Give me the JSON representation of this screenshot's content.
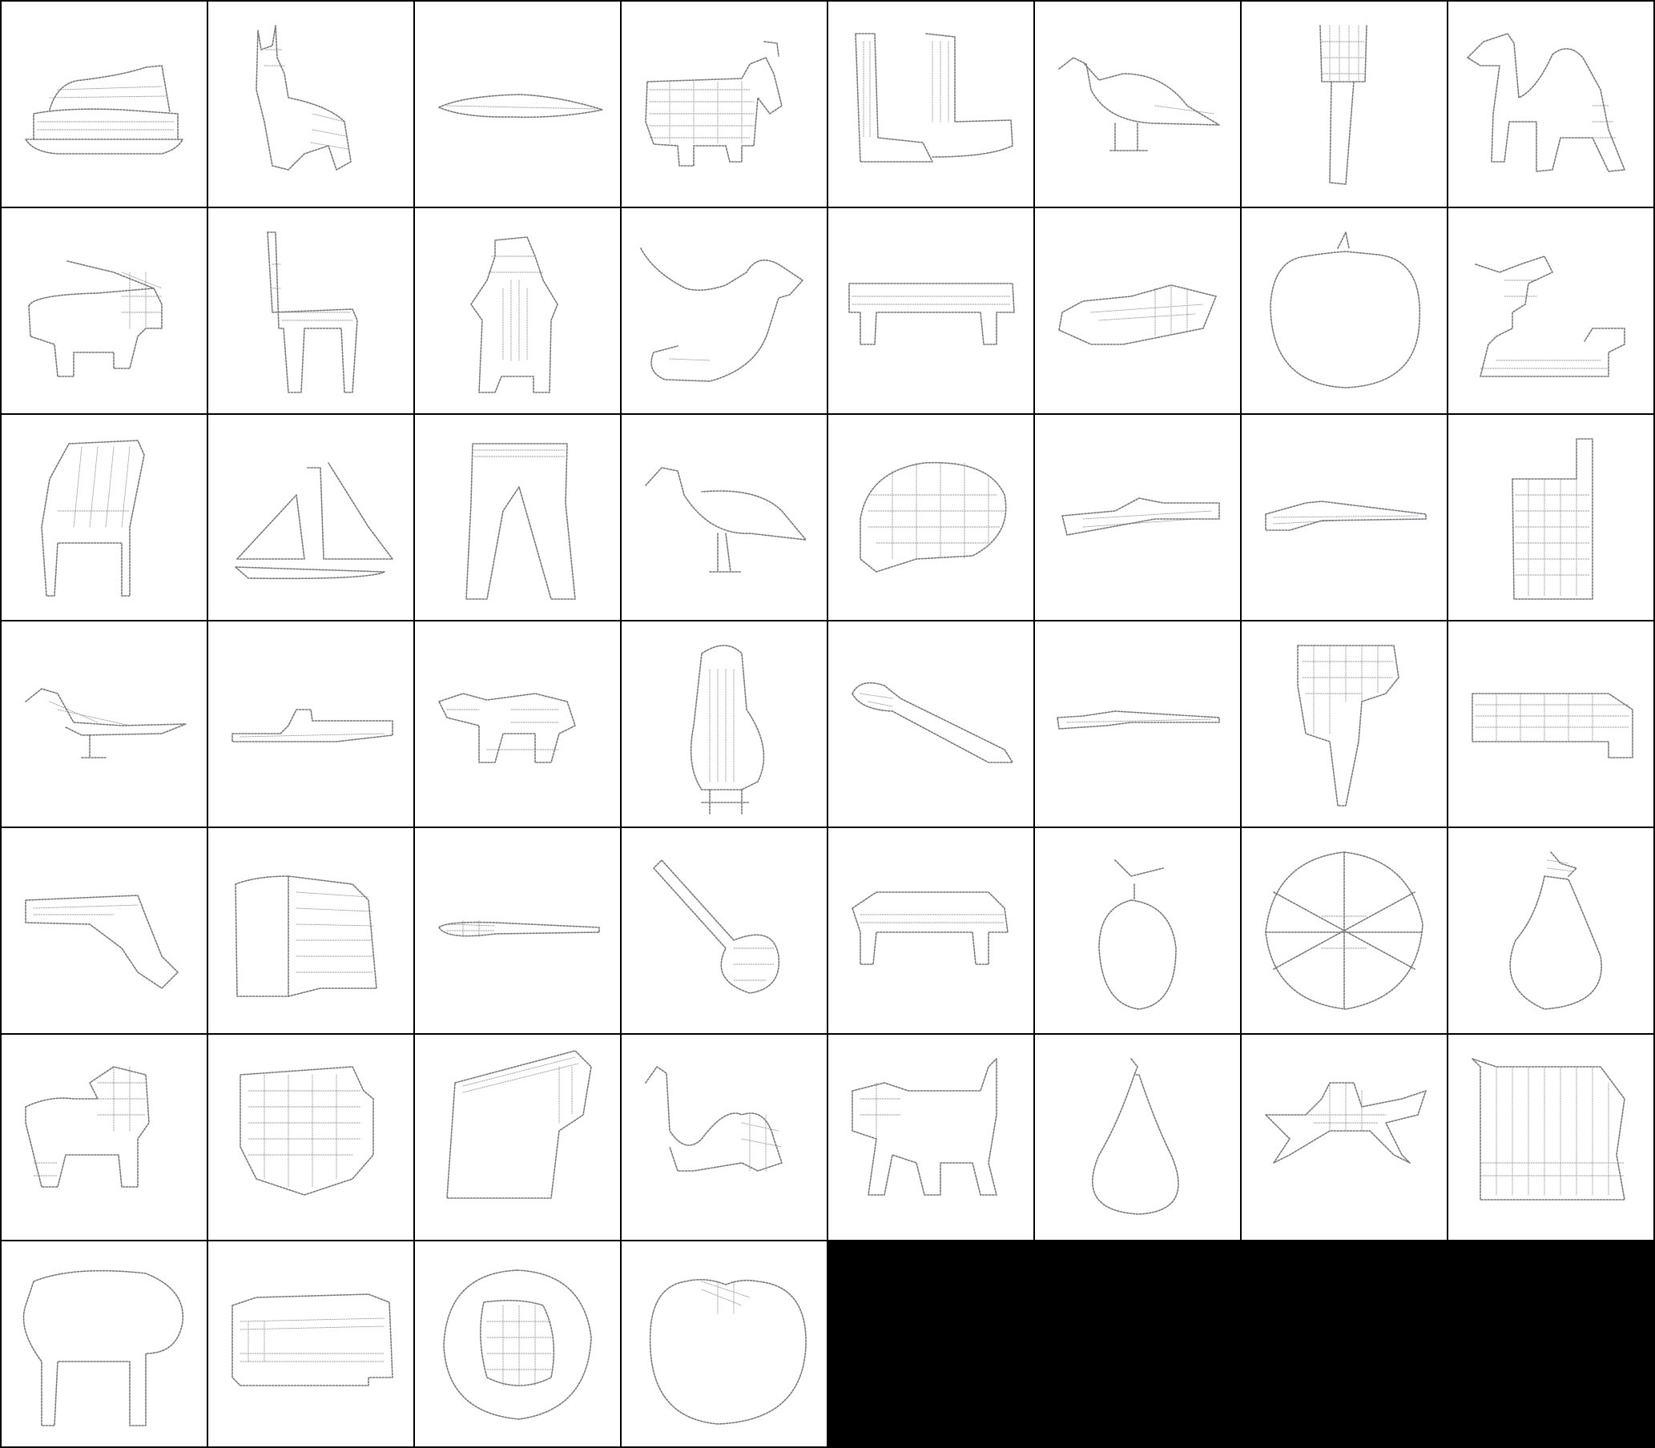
{
  "grid": {
    "columns": 8,
    "rows": 7,
    "filled_cells": 52,
    "background": "#000000",
    "cell_background": "#ffffff",
    "stroke_color": "#6f6872"
  },
  "cells": [
    {
      "subject": "cruise-ship-sketch"
    },
    {
      "subject": "dog-sitting-sketch"
    },
    {
      "subject": "canoe-sketch"
    },
    {
      "subject": "elephant-sketch"
    },
    {
      "subject": "boots-sketch"
    },
    {
      "subject": "bird-sketch"
    },
    {
      "subject": "fork-sketch"
    },
    {
      "subject": "camel-sketch"
    },
    {
      "subject": "pig-sketch"
    },
    {
      "subject": "chair-sketch"
    },
    {
      "subject": "penguin-sketch"
    },
    {
      "subject": "duck-sketch"
    },
    {
      "subject": "bench-sketch"
    },
    {
      "subject": "speedboat-sketch"
    },
    {
      "subject": "apple-sketch"
    },
    {
      "subject": "animal-sketch"
    },
    {
      "subject": "armchair-sketch"
    },
    {
      "subject": "sailboat-sketch"
    },
    {
      "subject": "pants-sketch"
    },
    {
      "subject": "bird-sketch"
    },
    {
      "subject": "hedgehog-sketch"
    },
    {
      "subject": "submarine-sketch"
    },
    {
      "subject": "rifle-sketch"
    },
    {
      "subject": "cellphone-sketch"
    },
    {
      "subject": "bird-sketch"
    },
    {
      "subject": "ship-sketch"
    },
    {
      "subject": "cow-sketch"
    },
    {
      "subject": "penguin-sketch"
    },
    {
      "subject": "spoon-sketch"
    },
    {
      "subject": "rifle-sketch"
    },
    {
      "subject": "hair-dryer-sketch"
    },
    {
      "subject": "truck-sketch"
    },
    {
      "subject": "pistol-sketch"
    },
    {
      "subject": "book-sketch"
    },
    {
      "subject": "knife-sketch"
    },
    {
      "subject": "spoon-sketch"
    },
    {
      "subject": "bench-sketch"
    },
    {
      "subject": "apple-sketch"
    },
    {
      "subject": "wheel-sketch"
    },
    {
      "subject": "pear-sketch"
    },
    {
      "subject": "lion-sketch"
    },
    {
      "subject": "lion-face-sketch"
    },
    {
      "subject": "book-sketch"
    },
    {
      "subject": "camel-sketch"
    },
    {
      "subject": "cat-sketch"
    },
    {
      "subject": "pear-sketch"
    },
    {
      "subject": "spider-sketch"
    },
    {
      "subject": "harp-sketch"
    },
    {
      "subject": "table-sketch"
    },
    {
      "subject": "couch-sketch"
    },
    {
      "subject": "pizza-sketch"
    },
    {
      "subject": "pumpkin-sketch"
    },
    {
      "subject": "empty"
    },
    {
      "subject": "empty"
    },
    {
      "subject": "empty"
    },
    {
      "subject": "empty"
    }
  ]
}
